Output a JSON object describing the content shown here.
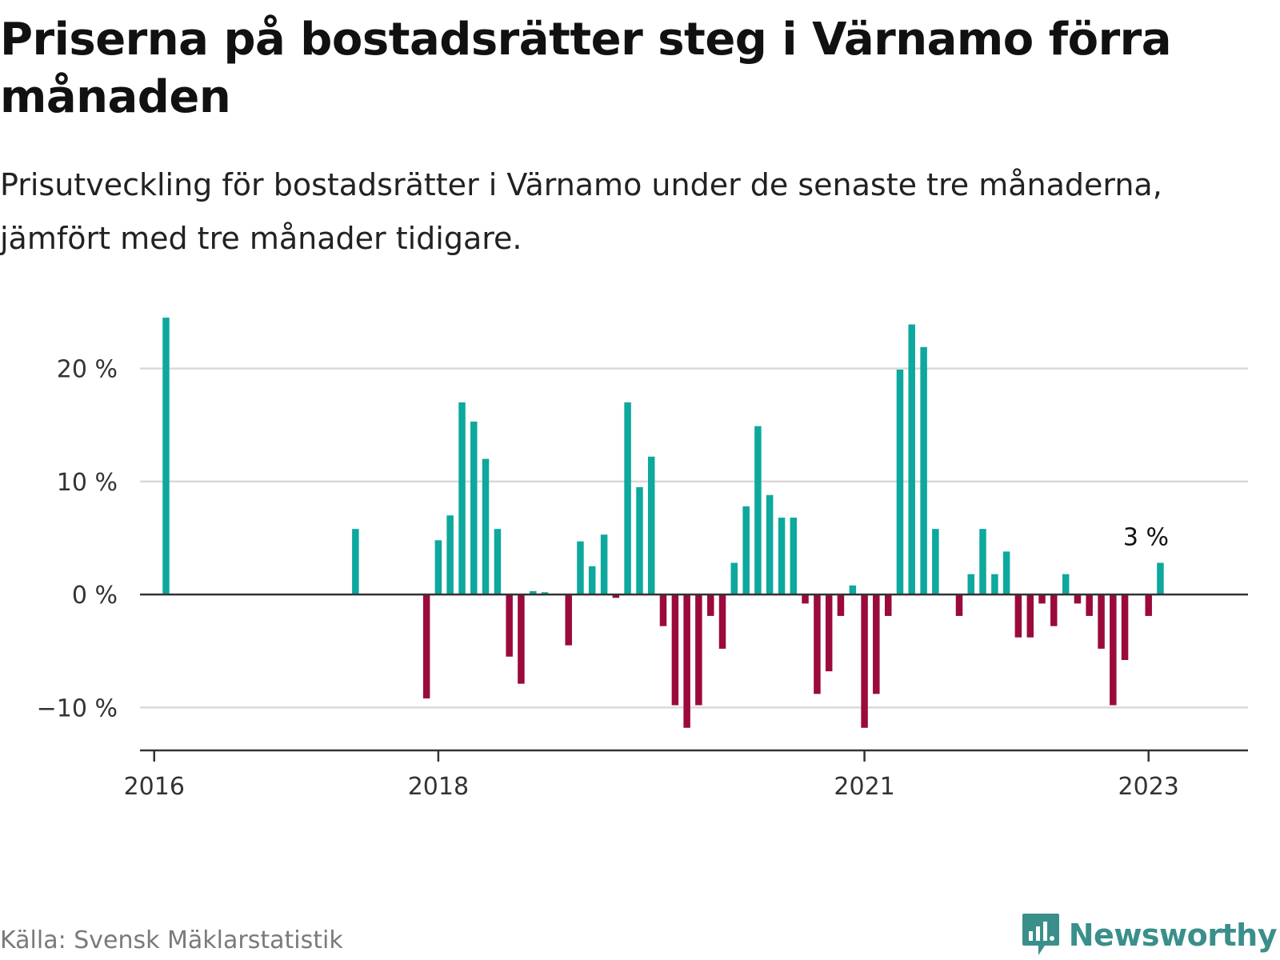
{
  "title": "Priserna på bostadsrätter steg i Värnamo förra månaden",
  "subtitle": "Prisutveckling för bostadsrätter i Värnamo under de senaste tre månaderna, jämfört med tre månader tidigare.",
  "source": "Källa: Svensk Mäklarstatistik",
  "brand": "Newsworthy",
  "colors": {
    "positive": "#0da89e",
    "negative": "#9b0a3d",
    "grid": "#d9d9d9",
    "axis": "#333333",
    "brand": "#3a8f8a"
  },
  "chart_data": {
    "type": "bar",
    "title": "Priserna på bostadsrätter steg i Värnamo förra månaden",
    "ylabel": "",
    "xlabel": "",
    "ylim": [
      -13.8,
      25
    ],
    "yticks": [
      -10,
      0,
      10,
      20
    ],
    "ytick_labels": [
      "−10 %",
      "0 %",
      "10 %",
      "20 %"
    ],
    "xlim": [
      2015.9,
      2023.7
    ],
    "xticks": [
      2016,
      2018,
      2021,
      2023
    ],
    "xtick_labels": [
      "2016",
      "2018",
      "2021",
      "2023"
    ],
    "annotation": {
      "text": "3 %",
      "x": 2023.083,
      "value": 2.8
    },
    "points": [
      {
        "x": 2016.083,
        "value": 24.5
      },
      {
        "x": 2017.417,
        "value": 5.8
      },
      {
        "x": 2017.917,
        "value": -9.2
      },
      {
        "x": 2018.0,
        "value": 4.8
      },
      {
        "x": 2018.083,
        "value": 7.0
      },
      {
        "x": 2018.167,
        "value": 17.0
      },
      {
        "x": 2018.25,
        "value": 15.3
      },
      {
        "x": 2018.333,
        "value": 12.0
      },
      {
        "x": 2018.417,
        "value": 5.8
      },
      {
        "x": 2018.5,
        "value": -5.5
      },
      {
        "x": 2018.583,
        "value": -7.9
      },
      {
        "x": 2018.667,
        "value": 0.3
      },
      {
        "x": 2018.75,
        "value": 0.2
      },
      {
        "x": 2018.917,
        "value": -4.5
      },
      {
        "x": 2019.0,
        "value": 4.7
      },
      {
        "x": 2019.083,
        "value": 2.5
      },
      {
        "x": 2019.167,
        "value": 5.3
      },
      {
        "x": 2019.25,
        "value": -0.3
      },
      {
        "x": 2019.333,
        "value": 17.0
      },
      {
        "x": 2019.417,
        "value": 9.5
      },
      {
        "x": 2019.5,
        "value": 12.2
      },
      {
        "x": 2019.583,
        "value": -2.8
      },
      {
        "x": 2019.667,
        "value": -9.8
      },
      {
        "x": 2019.75,
        "value": -11.8
      },
      {
        "x": 2019.833,
        "value": -9.8
      },
      {
        "x": 2019.917,
        "value": -1.9
      },
      {
        "x": 2020.0,
        "value": -4.8
      },
      {
        "x": 2020.083,
        "value": 2.8
      },
      {
        "x": 2020.167,
        "value": 7.8
      },
      {
        "x": 2020.25,
        "value": 14.9
      },
      {
        "x": 2020.333,
        "value": 8.8
      },
      {
        "x": 2020.417,
        "value": 6.8
      },
      {
        "x": 2020.5,
        "value": 6.8
      },
      {
        "x": 2020.583,
        "value": -0.8
      },
      {
        "x": 2020.667,
        "value": -8.8
      },
      {
        "x": 2020.75,
        "value": -6.8
      },
      {
        "x": 2020.833,
        "value": -1.9
      },
      {
        "x": 2020.917,
        "value": 0.8
      },
      {
        "x": 2021.0,
        "value": -11.8
      },
      {
        "x": 2021.083,
        "value": -8.8
      },
      {
        "x": 2021.167,
        "value": -1.9
      },
      {
        "x": 2021.25,
        "value": 19.9
      },
      {
        "x": 2021.333,
        "value": 23.9
      },
      {
        "x": 2021.417,
        "value": 21.9
      },
      {
        "x": 2021.5,
        "value": 5.8
      },
      {
        "x": 2021.667,
        "value": -1.9
      },
      {
        "x": 2021.75,
        "value": 1.8
      },
      {
        "x": 2021.833,
        "value": 5.8
      },
      {
        "x": 2021.917,
        "value": 1.8
      },
      {
        "x": 2022.0,
        "value": 3.8
      },
      {
        "x": 2022.083,
        "value": -3.8
      },
      {
        "x": 2022.167,
        "value": -3.8
      },
      {
        "x": 2022.25,
        "value": -0.8
      },
      {
        "x": 2022.333,
        "value": -2.8
      },
      {
        "x": 2022.417,
        "value": 1.8
      },
      {
        "x": 2022.5,
        "value": -0.8
      },
      {
        "x": 2022.583,
        "value": -1.9
      },
      {
        "x": 2022.667,
        "value": -4.8
      },
      {
        "x": 2022.75,
        "value": -9.8
      },
      {
        "x": 2022.833,
        "value": -5.8
      },
      {
        "x": 2023.0,
        "value": -1.9
      },
      {
        "x": 2023.083,
        "value": 2.8
      }
    ]
  }
}
